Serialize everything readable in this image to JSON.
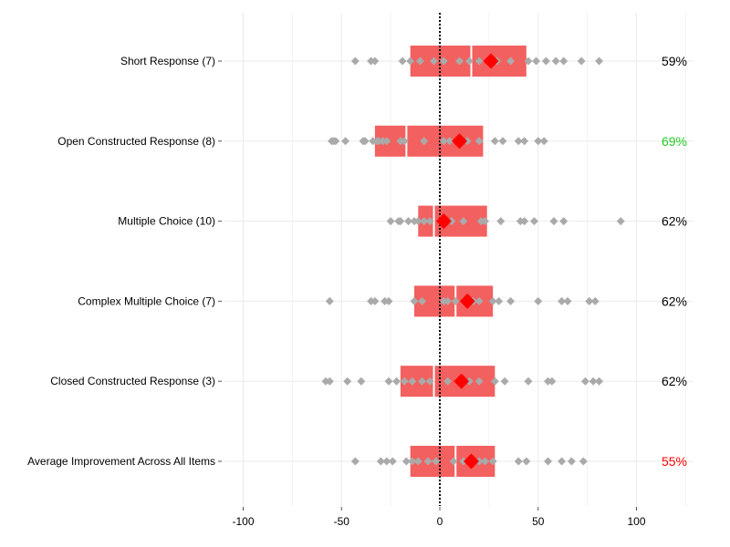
{
  "chart_data": {
    "type": "scatter",
    "title": "",
    "xlabel": "",
    "ylabel": "",
    "xlim": [
      -100,
      100
    ],
    "x_ticks": [
      -100,
      -50,
      0,
      50,
      100
    ],
    "x_tick_labels": [
      "-100",
      "-50",
      "0",
      "50",
      "100"
    ],
    "grid": true,
    "reference_line": {
      "x": 0,
      "style": "dotted",
      "color": "#000000"
    },
    "colors": {
      "box": "#f2605f",
      "mean": "#ff0000",
      "points": "#aaaaaa",
      "median_line": "#ffffff",
      "pct_default": "#000000",
      "pct_high": "#22cc22",
      "pct_low": "#ff0000"
    },
    "rows": [
      {
        "label": "Short Response (7)",
        "q1": -15,
        "median": 16,
        "q3": 44,
        "mean": 26,
        "points": [
          -43,
          -35,
          -33,
          -19,
          -15,
          -10,
          -3,
          2,
          10,
          15,
          20,
          27,
          29,
          36,
          45,
          49,
          54,
          59,
          63,
          72,
          81
        ],
        "pct": "59%",
        "pct_color": "#000000"
      },
      {
        "label": "Open Constructed Response (8)",
        "q1": -33,
        "median": -17,
        "q3": 22,
        "mean": 10,
        "points": [
          -55,
          -54,
          -53,
          -48,
          -39,
          -38,
          -34,
          -32,
          -31,
          -29,
          -27,
          -20,
          -18,
          -8,
          2,
          5,
          9,
          14,
          20,
          28,
          32,
          40,
          43,
          50,
          53
        ],
        "pct": "69%",
        "pct_color": "#22cc22"
      },
      {
        "label": "Multiple Choice (10)",
        "q1": -11,
        "median": -3,
        "q3": 24,
        "mean": 2,
        "points": [
          -25,
          -21,
          -20,
          -16,
          -13,
          -11,
          -8,
          -5,
          0,
          6,
          12,
          21,
          23,
          31,
          41,
          43,
          48,
          58,
          63,
          92
        ],
        "pct": "62%",
        "pct_color": "#000000"
      },
      {
        "label": "Complex Multiple Choice (7)",
        "q1": -13,
        "median": 8,
        "q3": 27,
        "mean": 14,
        "points": [
          -56,
          -35,
          -33,
          -28,
          -26,
          -13,
          -9,
          2,
          4,
          8,
          12,
          17,
          20,
          27,
          30,
          36,
          50,
          62,
          65,
          76,
          79
        ],
        "pct": "62%",
        "pct_color": "#000000"
      },
      {
        "label": "Closed Constructed Response (3)",
        "q1": -20,
        "median": -3,
        "q3": 28,
        "mean": 11,
        "points": [
          -58,
          -56,
          -47,
          -40,
          -26,
          -22,
          -18,
          -14,
          -9,
          -5,
          4,
          12,
          15,
          20,
          28,
          33,
          45,
          55,
          57,
          74,
          78,
          81
        ],
        "pct": "62%",
        "pct_color": "#000000"
      },
      {
        "label": "Average Improvement Across All Items",
        "q1": -15,
        "median": 8,
        "q3": 28,
        "mean": 16,
        "points": [
          -43,
          -30,
          -27,
          -24,
          -17,
          -14,
          -11,
          -6,
          -2,
          7,
          12,
          20,
          23,
          27,
          40,
          44,
          55,
          62,
          67,
          73
        ],
        "pct": "55%",
        "pct_color": "#ff0000"
      }
    ]
  }
}
